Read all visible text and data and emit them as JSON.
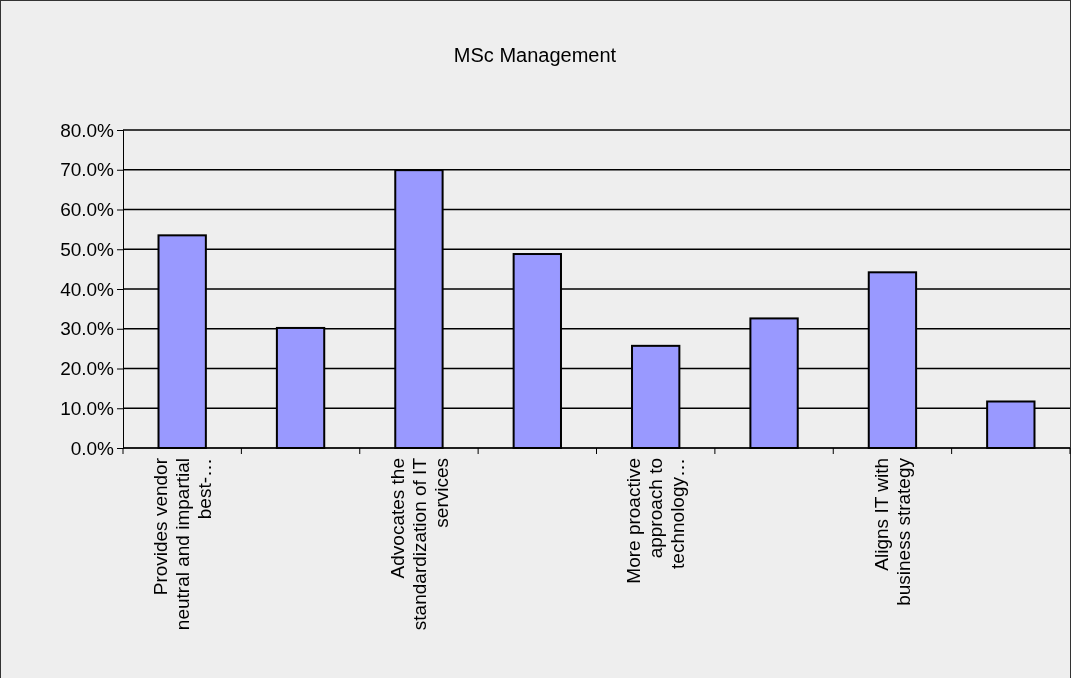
{
  "chart_data": {
    "type": "bar",
    "title": "MSc Management",
    "categories": [
      "Provides vendor neutral and impartial best-…",
      null,
      "Advocates the standardization of IT services",
      null,
      "More proactive approach to technology…",
      null,
      "Aligns IT with business strategy",
      null
    ],
    "values": [
      53.5,
      30.2,
      69.9,
      48.8,
      25.7,
      32.6,
      44.2,
      11.7
    ],
    "color": "#9999ff",
    "ylim": [
      0,
      80
    ],
    "yticks": [
      {
        "value": 0,
        "label": "0.0%"
      },
      {
        "value": 10,
        "label": "10.0%"
      },
      {
        "value": 20,
        "label": "20.0%"
      },
      {
        "value": 30,
        "label": "30.0%"
      },
      {
        "value": 40,
        "label": "40.0%"
      },
      {
        "value": 50,
        "label": "50.0%"
      },
      {
        "value": 60,
        "label": "60.0%"
      },
      {
        "value": 70,
        "label": "70.0%"
      },
      {
        "value": 80,
        "label": "80.0%"
      }
    ],
    "grid": "y"
  }
}
